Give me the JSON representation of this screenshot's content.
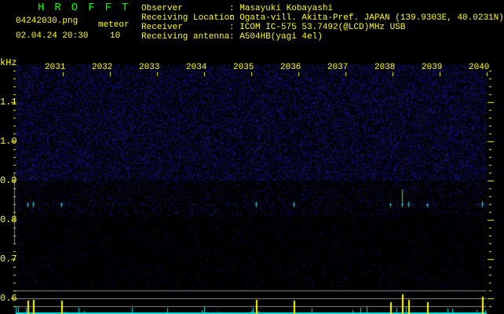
{
  "header": {
    "app_title": "HROFFT",
    "filename": "04242030.png",
    "datetime": "02.04.24 20:30",
    "meteor_label": "meteor",
    "meteor_count": "10"
  },
  "info": [
    {
      "label": "Observer",
      "value": ": Masayuki Kobayashi"
    },
    {
      "label": "Receiving Location",
      "value": ": Ogata-vill. Akita-Pref. JAPAN (139.9303E, 40.0231N)"
    },
    {
      "label": "Receiver",
      "value": ": ICOM IC-575 53.7492(@LCD)MHz USB"
    },
    {
      "label": "Receiving antenna",
      "value": ": A504HB(yagi 4el)"
    }
  ],
  "colors": {
    "text": "#ffff00",
    "title": "#00ff00",
    "noise": "#1a1aa0",
    "grid": "#888888",
    "histogram_base": "#00e0e0",
    "histogram_peak": "#ffff00"
  },
  "chart_data": {
    "type": "heatmap",
    "ylabel": "kHz",
    "y_ticks": [
      "1.1",
      "1.0",
      "0.9",
      "0.8",
      "0.7",
      "0.6"
    ],
    "ylim": [
      0.56,
      1.2
    ],
    "x_ticks": [
      "2031",
      "2032",
      "2033",
      "2034",
      "2035",
      "2036",
      "2037",
      "2038",
      "2039",
      "2040"
    ],
    "xlim_minutes": [
      0,
      10
    ],
    "carrier_khz": 0.84,
    "meteor_echoes": [
      {
        "minute": 0.25,
        "strength": 0.5
      },
      {
        "minute": 0.37,
        "strength": 0.6
      },
      {
        "minute": 0.97,
        "strength": 0.5
      },
      {
        "minute": 5.1,
        "strength": 0.6
      },
      {
        "minute": 5.9,
        "strength": 0.5
      },
      {
        "minute": 7.95,
        "strength": 0.4
      },
      {
        "minute": 8.2,
        "strength": 1.0
      },
      {
        "minute": 8.33,
        "strength": 0.6
      },
      {
        "minute": 8.73,
        "strength": 0.4
      },
      {
        "minute": 9.9,
        "strength": 0.8
      }
    ],
    "grid": false
  }
}
